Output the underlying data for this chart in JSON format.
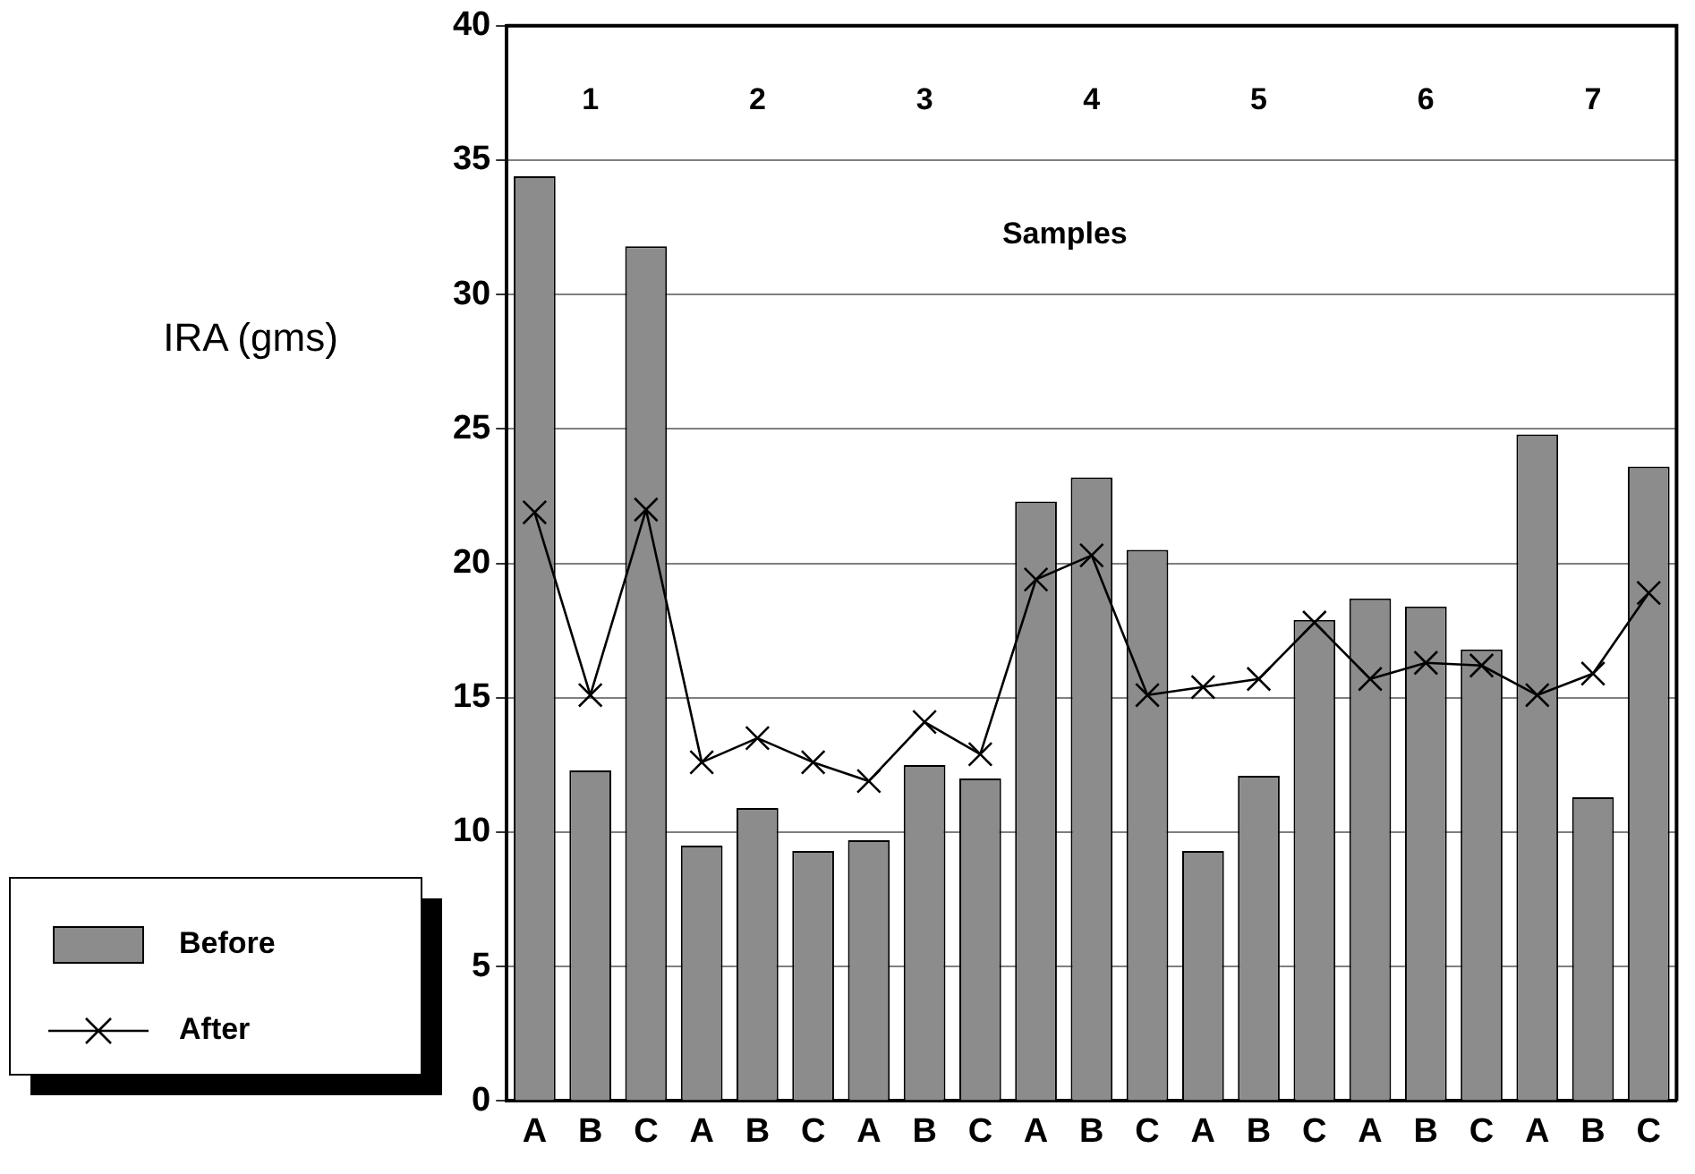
{
  "chart_data": {
    "type": "bar",
    "ylabel": "IRA (gms)",
    "xlabel": "Samples",
    "categories": [
      "A",
      "B",
      "C",
      "A",
      "B",
      "C",
      "A",
      "B",
      "C",
      "A",
      "B",
      "C",
      "A",
      "B",
      "C",
      "A",
      "B",
      "C",
      "A",
      "B",
      "C"
    ],
    "annotations": [
      "1",
      "2",
      "3",
      "4",
      "5",
      "6",
      "7"
    ],
    "series": [
      {
        "name": "Before",
        "color": "#8c8c8c",
        "values": [
          34.4,
          12.3,
          31.8,
          9.5,
          10.9,
          9.3,
          9.7,
          12.5,
          12.0,
          22.3,
          23.2,
          20.5,
          9.3,
          12.1,
          17.9,
          18.7,
          18.4,
          16.8,
          24.8,
          11.3,
          23.6
        ]
      },
      {
        "name": "After",
        "type": "line",
        "color": "#000000",
        "marker": "cross",
        "values": [
          21.9,
          15.1,
          22.0,
          12.6,
          13.5,
          12.6,
          11.9,
          14.1,
          12.9,
          19.4,
          20.3,
          15.1,
          15.4,
          15.7,
          17.8,
          15.7,
          16.3,
          16.2,
          15.1,
          15.9,
          18.9
        ]
      }
    ],
    "ylim": [
      0,
      40
    ],
    "yticks": [
      0,
      5,
      10,
      15,
      20,
      25,
      30,
      35,
      40
    ],
    "grid": "y",
    "legend": "bottom left"
  }
}
